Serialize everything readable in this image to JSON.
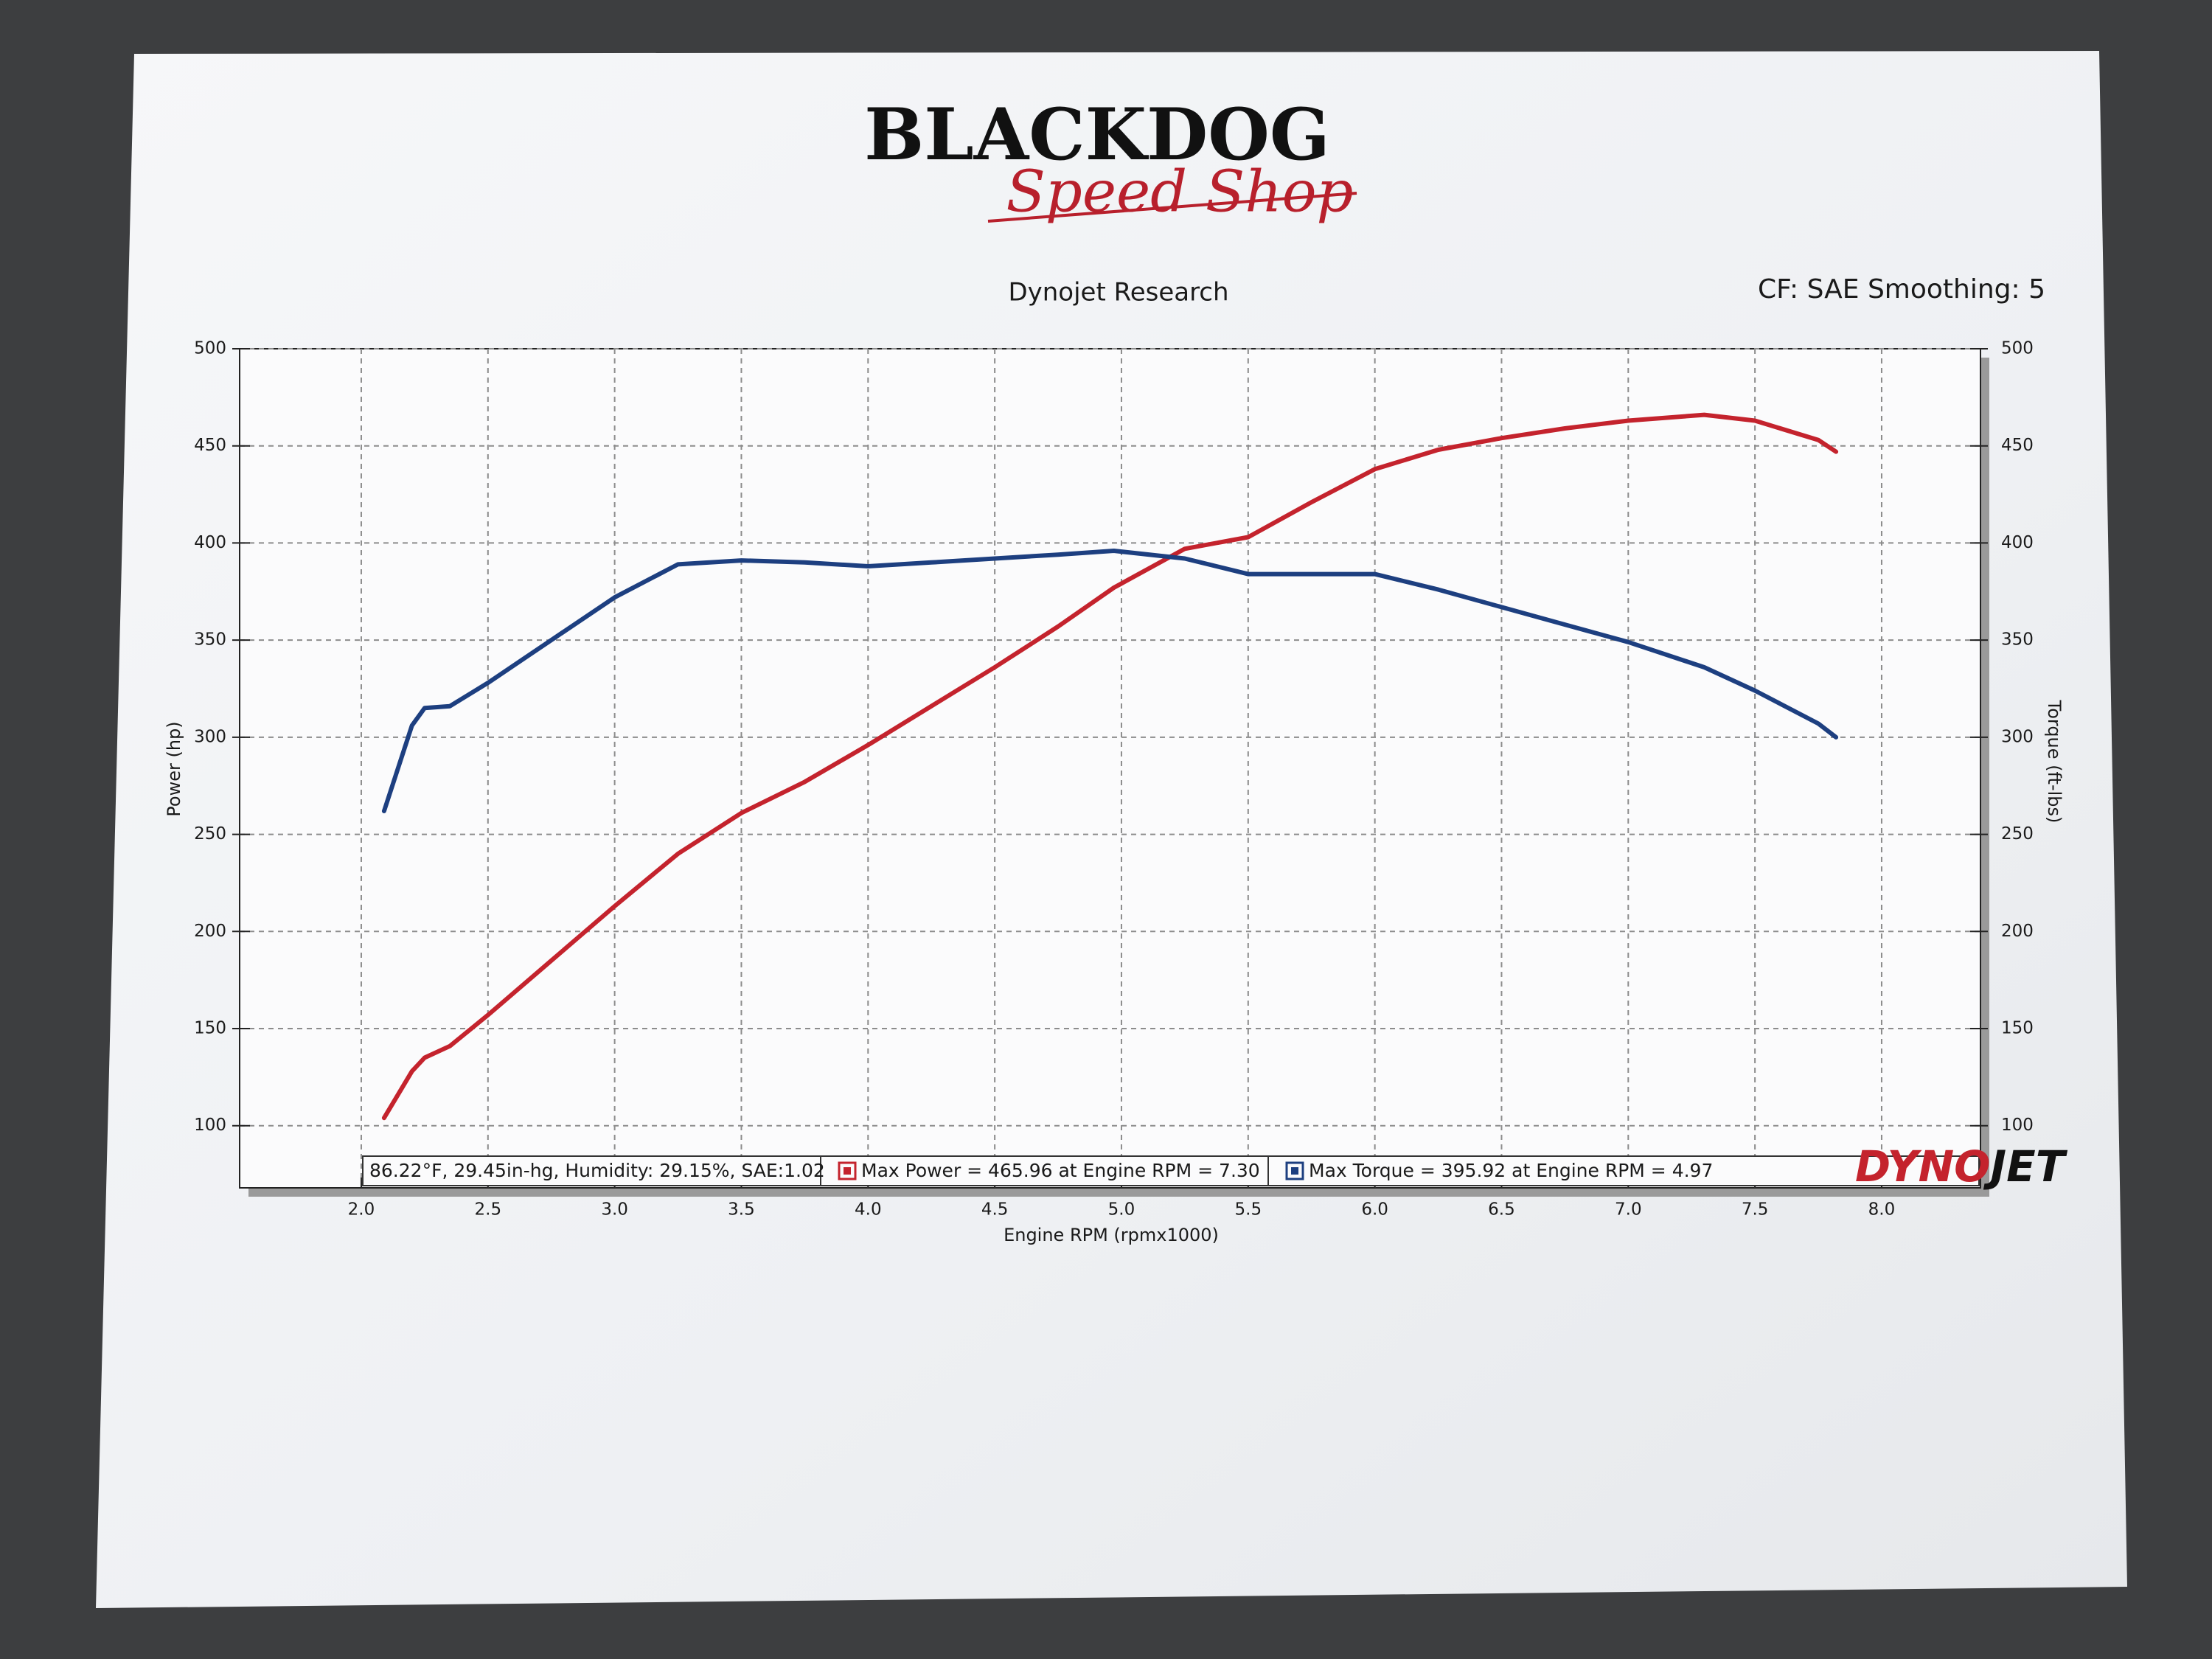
{
  "header": {
    "logo": "BLACKDOG",
    "tagline": "Speed Shop"
  },
  "chart_data": {
    "type": "line",
    "title": "Dynojet Research",
    "subtitle": "CF: SAE Smoothing: 5",
    "x_label": "Engine RPM (rpmx1000)",
    "y_label": "Power (hp)",
    "y2_label": "Torque (ft-lbs)",
    "conditions": "86.22°F, 29.45in-hg, Humidity: 29.15%, SAE:1.02",
    "brand": [
      "DYNO",
      "JET"
    ],
    "grid": true,
    "x": [
      2.09,
      2.2,
      2.25,
      2.35,
      2.5,
      2.75,
      3.0,
      3.25,
      3.5,
      3.75,
      4.0,
      4.25,
      4.5,
      4.75,
      4.97,
      5.25,
      5.5,
      5.75,
      6.0,
      6.25,
      6.5,
      6.75,
      7.0,
      7.3,
      7.5,
      7.75,
      7.82
    ],
    "series": [
      {
        "name": "Max Power = 465.96 at Engine RPM = 7.30",
        "color": "#c4232d",
        "axis": "y",
        "values": [
          104,
          128,
          135,
          141,
          157,
          185,
          213,
          240,
          261,
          277,
          296,
          316,
          336,
          357,
          377,
          397,
          403,
          421,
          438,
          448,
          454,
          459,
          463,
          466,
          463,
          453,
          447
        ]
      },
      {
        "name": "Max Torque = 395.92 at Engine RPM = 4.97",
        "color": "#1d3f80",
        "axis": "y2",
        "values": [
          262,
          306,
          315,
          316,
          328,
          350,
          372,
          389,
          391,
          390,
          388,
          390,
          392,
          394,
          396,
          392,
          384,
          384,
          384,
          376,
          367,
          358,
          349,
          336,
          324,
          307,
          300
        ]
      }
    ],
    "xlim": [
      1.52,
      8.39
    ],
    "xticks": [
      {
        "value": 2,
        "label": "2.0"
      },
      2.5,
      {
        "value": 3,
        "label": "3.0"
      },
      3.5,
      {
        "value": 4,
        "label": "4.0"
      },
      4.5,
      {
        "value": 5,
        "label": "5.0"
      },
      5.5,
      {
        "value": 6,
        "label": "6.0"
      },
      6.5,
      {
        "value": 7,
        "label": "7.0"
      },
      7.5,
      {
        "value": 8,
        "label": "8.0"
      }
    ],
    "ylim": [
      68,
      500
    ],
    "yticks": [
      100,
      150,
      200,
      250,
      300,
      350,
      400,
      450,
      500
    ],
    "y2lim": [
      68,
      500
    ],
    "y2ticks": [
      100,
      150,
      200,
      250,
      300,
      350,
      400,
      450,
      500
    ]
  }
}
